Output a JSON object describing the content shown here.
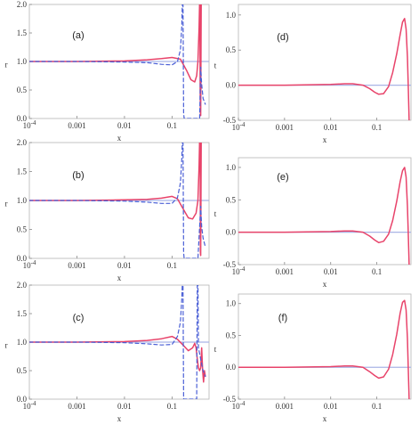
{
  "colors": {
    "solid": "#e8436a",
    "dashed": "#4a5fd6",
    "reference": "#a9b4e6",
    "axis": "#8a8a8a",
    "frame": "#b5b5b5"
  },
  "chart_data": [
    {
      "panel": "(a)",
      "type": "line",
      "xscale": "log",
      "xlim": [
        0.0001,
        0.6
      ],
      "ylim": [
        0,
        2
      ],
      "xticks": [
        "10^-4",
        "0.001",
        "0.01",
        "0.1"
      ],
      "xtick_values": [
        0.0001,
        0.001,
        0.01,
        0.1
      ],
      "yticks": [
        "0.0",
        "0.5",
        "1.0",
        "1.5",
        "2.0"
      ],
      "ytick_values": [
        0,
        0.5,
        1,
        1.5,
        2
      ],
      "xlabel": "x",
      "ylabel": "r",
      "reference_y": 1,
      "series": [
        {
          "style": "solid",
          "x": [
            0.0001,
            0.001,
            0.01,
            0.03,
            0.06,
            0.1,
            0.15,
            0.2,
            0.25,
            0.3,
            0.33,
            0.35,
            0.37,
            0.38,
            0.385,
            0.39,
            0.395,
            0.4,
            0.41,
            0.42,
            0.44
          ],
          "y": [
            1.0,
            1.0,
            1.01,
            1.03,
            1.05,
            1.07,
            1.04,
            0.85,
            0.68,
            0.64,
            0.75,
            1.0,
            1.6,
            2.05,
            2.05,
            0.5,
            0.1,
            0.05,
            2.05,
            2.05,
            2.05
          ]
        },
        {
          "style": "dashed",
          "x": [
            0.0001,
            0.001,
            0.01,
            0.03,
            0.06,
            0.1,
            0.13,
            0.15,
            0.16,
            0.165,
            0.17,
            0.175,
            0.18,
            0.2,
            0.25,
            0.3,
            0.35,
            0.38,
            0.4,
            0.42,
            0.45,
            0.5
          ],
          "y": [
            1.0,
            1.0,
            0.99,
            0.98,
            0.95,
            0.94,
            1.0,
            1.2,
            1.6,
            2.05,
            2.05,
            0.1,
            0.0,
            0.0,
            0.0,
            0.0,
            0.0,
            0.0,
            0.9,
            0.6,
            0.35,
            0.25
          ]
        }
      ]
    },
    {
      "panel": "(b)",
      "type": "line",
      "xscale": "log",
      "xlim": [
        0.0001,
        0.6
      ],
      "ylim": [
        0,
        2
      ],
      "xticks": [
        "10^-4",
        "0.001",
        "0.01",
        "0.1"
      ],
      "xtick_values": [
        0.0001,
        0.001,
        0.01,
        0.1
      ],
      "yticks": [
        "0.0",
        "0.5",
        "1.0",
        "1.5",
        "2.0"
      ],
      "ytick_values": [
        0,
        0.5,
        1,
        1.5,
        2
      ],
      "xlabel": "x",
      "ylabel": "r",
      "reference_y": 1,
      "series": [
        {
          "style": "solid",
          "x": [
            0.0001,
            0.001,
            0.01,
            0.03,
            0.06,
            0.1,
            0.13,
            0.17,
            0.22,
            0.27,
            0.32,
            0.35,
            0.37,
            0.38,
            0.39,
            0.395,
            0.4,
            0.41,
            0.42,
            0.44
          ],
          "y": [
            1.0,
            1.0,
            1.01,
            1.02,
            1.04,
            1.07,
            1.03,
            0.86,
            0.7,
            0.68,
            0.78,
            1.0,
            1.6,
            2.05,
            2.05,
            0.1,
            0.05,
            2.05,
            2.05,
            2.05
          ]
        },
        {
          "style": "dashed",
          "x": [
            0.0001,
            0.001,
            0.01,
            0.03,
            0.06,
            0.1,
            0.13,
            0.15,
            0.16,
            0.165,
            0.17,
            0.175,
            0.18,
            0.25,
            0.35,
            0.4,
            0.42,
            0.45,
            0.5
          ],
          "y": [
            1.0,
            1.0,
            0.99,
            0.97,
            0.95,
            0.95,
            1.05,
            1.3,
            1.7,
            2.05,
            2.05,
            0.1,
            0.0,
            0.0,
            0.0,
            0.9,
            0.55,
            0.35,
            0.2
          ]
        }
      ]
    },
    {
      "panel": "(c)",
      "type": "line",
      "xscale": "log",
      "xlim": [
        0.0001,
        0.6
      ],
      "ylim": [
        0,
        2
      ],
      "xticks": [
        "10^-4",
        "0.001",
        "0.01",
        "0.1"
      ],
      "xtick_values": [
        0.0001,
        0.001,
        0.01,
        0.1
      ],
      "yticks": [
        "0.0",
        "0.5",
        "1.0",
        "1.5",
        "2.0"
      ],
      "ytick_values": [
        0,
        0.5,
        1,
        1.5,
        2
      ],
      "xlabel": "x",
      "ylabel": "r",
      "reference_y": 1,
      "series": [
        {
          "style": "solid",
          "x": [
            0.0001,
            0.001,
            0.01,
            0.03,
            0.06,
            0.1,
            0.13,
            0.17,
            0.22,
            0.27,
            0.3,
            0.32,
            0.34,
            0.36,
            0.38,
            0.4,
            0.42,
            0.44,
            0.46,
            0.48,
            0.5
          ],
          "y": [
            1.0,
            1.0,
            1.01,
            1.03,
            1.06,
            1.1,
            1.05,
            0.95,
            0.85,
            0.9,
            0.98,
            0.9,
            0.7,
            0.55,
            0.5,
            0.55,
            0.9,
            0.5,
            0.3,
            0.5,
            0.4
          ]
        },
        {
          "style": "dashed",
          "x": [
            0.0001,
            0.001,
            0.01,
            0.03,
            0.06,
            0.1,
            0.13,
            0.15,
            0.16,
            0.165,
            0.17,
            0.175,
            0.18,
            0.25,
            0.3,
            0.33,
            0.34,
            0.35,
            0.36,
            0.4,
            0.45,
            0.5
          ],
          "y": [
            1.0,
            1.0,
            0.99,
            0.97,
            0.95,
            0.96,
            1.1,
            1.35,
            1.75,
            2.05,
            2.05,
            0.0,
            0.0,
            0.0,
            0.0,
            0.0,
            2.05,
            2.05,
            0.9,
            0.7,
            0.5,
            0.4
          ]
        }
      ]
    },
    {
      "panel": "(d)",
      "type": "line",
      "xscale": "log",
      "xlim": [
        0.0001,
        0.55
      ],
      "ylim": [
        -0.5,
        1.15
      ],
      "xticks": [
        "10^-4",
        "0.001",
        "0.01",
        "0.1"
      ],
      "xtick_values": [
        0.0001,
        0.001,
        0.01,
        0.1
      ],
      "yticks": [
        "-0.5",
        "0.0",
        "0.5",
        "1.0"
      ],
      "ytick_values": [
        -0.5,
        0,
        0.5,
        1
      ],
      "xlabel": "x",
      "ylabel": "t",
      "reference_y": 0,
      "series": [
        {
          "style": "solid",
          "x": [
            0.0001,
            0.001,
            0.01,
            0.02,
            0.03,
            0.05,
            0.07,
            0.09,
            0.11,
            0.14,
            0.18,
            0.22,
            0.27,
            0.32,
            0.36,
            0.4,
            0.43,
            0.46,
            0.48,
            0.5
          ],
          "y": [
            0.0,
            0.0,
            0.01,
            0.02,
            0.02,
            0.0,
            -0.05,
            -0.1,
            -0.13,
            -0.12,
            -0.02,
            0.18,
            0.45,
            0.72,
            0.9,
            0.95,
            0.8,
            0.4,
            0.0,
            -0.5
          ]
        }
      ]
    },
    {
      "panel": "(e)",
      "type": "line",
      "xscale": "log",
      "xlim": [
        0.0001,
        0.55
      ],
      "ylim": [
        -0.5,
        1.15
      ],
      "xticks": [
        "10^-4",
        "0.001",
        "0.01",
        "0.1"
      ],
      "xtick_values": [
        0.0001,
        0.001,
        0.01,
        0.1
      ],
      "yticks": [
        "-0.5",
        "0.0",
        "0.5",
        "1.0"
      ],
      "ytick_values": [
        -0.5,
        0,
        0.5,
        1
      ],
      "xlabel": "x",
      "ylabel": "t",
      "reference_y": 0,
      "series": [
        {
          "style": "solid",
          "x": [
            0.0001,
            0.001,
            0.01,
            0.02,
            0.03,
            0.05,
            0.07,
            0.09,
            0.11,
            0.14,
            0.18,
            0.22,
            0.27,
            0.32,
            0.36,
            0.4,
            0.43,
            0.46,
            0.48,
            0.5
          ],
          "y": [
            0.0,
            0.0,
            0.01,
            0.02,
            0.02,
            0.0,
            -0.06,
            -0.12,
            -0.16,
            -0.14,
            -0.03,
            0.18,
            0.48,
            0.78,
            0.95,
            1.0,
            0.85,
            0.4,
            0.0,
            -0.5
          ]
        }
      ]
    },
    {
      "panel": "(f)",
      "type": "line",
      "xscale": "log",
      "xlim": [
        0.0001,
        0.55
      ],
      "ylim": [
        -0.5,
        1.15
      ],
      "xticks": [
        "10^-4",
        "0.001",
        "0.01",
        "0.1"
      ],
      "xtick_values": [
        0.0001,
        0.001,
        0.01,
        0.1
      ],
      "yticks": [
        "-0.5",
        "0.0",
        "0.5",
        "1.0"
      ],
      "ytick_values": [
        -0.5,
        0,
        0.5,
        1
      ],
      "xlabel": "x",
      "ylabel": "t",
      "reference_y": 0,
      "series": [
        {
          "style": "solid",
          "x": [
            0.0001,
            0.001,
            0.01,
            0.02,
            0.03,
            0.05,
            0.07,
            0.09,
            0.11,
            0.14,
            0.18,
            0.22,
            0.27,
            0.32,
            0.36,
            0.4,
            0.43,
            0.46,
            0.48,
            0.5
          ],
          "y": [
            0.0,
            0.0,
            0.01,
            0.02,
            0.02,
            0.0,
            -0.07,
            -0.13,
            -0.17,
            -0.15,
            -0.03,
            0.2,
            0.52,
            0.85,
            1.02,
            1.05,
            0.9,
            0.45,
            0.0,
            -0.5
          ]
        }
      ]
    }
  ]
}
